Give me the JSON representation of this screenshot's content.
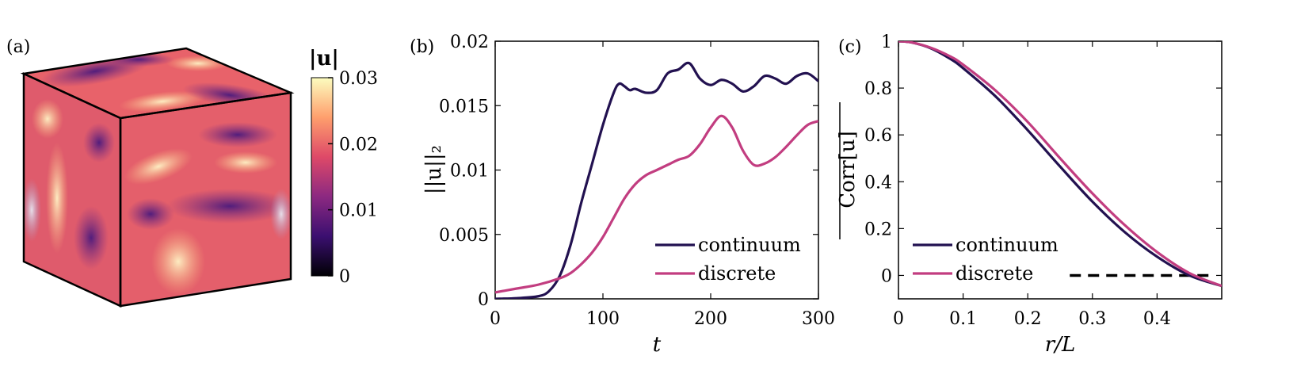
{
  "panels": {
    "a": "(a)",
    "b": "(b)",
    "c": "(c)"
  },
  "colors": {
    "continuum": "#221150",
    "discrete": "#c23d80"
  },
  "chart_data": [
    {
      "id": "a",
      "type": "heatmap",
      "colorbar": {
        "label": "|u|",
        "range": [
          0,
          0.03
        ],
        "ticks": [
          0,
          0.01,
          0.02,
          0.03
        ],
        "tick_labels": [
          "0",
          "0.01",
          "0.02",
          "0.03"
        ],
        "colormap": [
          "#000004",
          "#3b0f70",
          "#8c2981",
          "#de4968",
          "#fe9f6d",
          "#fcfdbf"
        ]
      }
    },
    {
      "id": "b",
      "type": "line",
      "xlabel": "t",
      "ylabel": "||u||₂",
      "xlim": [
        0,
        300
      ],
      "ylim": [
        0,
        0.02
      ],
      "xticks": [
        0,
        100,
        200,
        300
      ],
      "xtick_labels": [
        "0",
        "100",
        "200",
        "300"
      ],
      "yticks": [
        0,
        0.005,
        0.01,
        0.015,
        0.02
      ],
      "ytick_labels": [
        "0",
        "0.005",
        "0.01",
        "0.015",
        "0.02"
      ],
      "legend": [
        "continuum",
        "discrete"
      ],
      "legend_position": "bottom-right",
      "series": [
        {
          "name": "continuum",
          "x": [
            0,
            20,
            40,
            50,
            60,
            70,
            80,
            90,
            100,
            110,
            115,
            120,
            125,
            130,
            140,
            150,
            160,
            170,
            180,
            190,
            200,
            210,
            220,
            230,
            240,
            250,
            260,
            270,
            280,
            290,
            300
          ],
          "y": [
            0,
            5e-05,
            0.0002,
            0.0006,
            0.0018,
            0.0042,
            0.0075,
            0.0105,
            0.0135,
            0.016,
            0.0167,
            0.0165,
            0.0162,
            0.0163,
            0.016,
            0.0162,
            0.0175,
            0.0178,
            0.0183,
            0.0171,
            0.0166,
            0.017,
            0.0167,
            0.0161,
            0.0165,
            0.0173,
            0.0171,
            0.0167,
            0.0173,
            0.0175,
            0.0169
          ]
        },
        {
          "name": "discrete",
          "x": [
            0,
            20,
            40,
            60,
            70,
            80,
            90,
            100,
            110,
            120,
            130,
            140,
            150,
            160,
            170,
            180,
            190,
            200,
            210,
            220,
            230,
            240,
            250,
            260,
            270,
            280,
            290,
            300
          ],
          "y": [
            0.0005,
            0.0008,
            0.0011,
            0.0016,
            0.002,
            0.0027,
            0.0036,
            0.0048,
            0.0063,
            0.0078,
            0.0089,
            0.0096,
            0.01,
            0.0104,
            0.0108,
            0.0111,
            0.012,
            0.0133,
            0.0142,
            0.0133,
            0.0115,
            0.0104,
            0.0105,
            0.011,
            0.0118,
            0.0127,
            0.0135,
            0.0138
          ]
        }
      ]
    },
    {
      "id": "c",
      "type": "line",
      "xlabel": "r/L",
      "ylabel": "Corr[u]",
      "xlim": [
        0,
        0.5
      ],
      "ylim": [
        -0.1,
        1
      ],
      "xticks": [
        0,
        0.1,
        0.2,
        0.3,
        0.4
      ],
      "xtick_labels": [
        "0",
        "0.1",
        "0.2",
        "0.3",
        "0.4"
      ],
      "yticks": [
        0,
        0.2,
        0.4,
        0.6,
        0.8,
        1
      ],
      "ytick_labels": [
        "0",
        "0.2",
        "0.4",
        "0.6",
        "0.8",
        "1"
      ],
      "legend": [
        "continuum",
        "discrete"
      ],
      "legend_position": "bottom-left",
      "reference_line": {
        "y": 0,
        "x_range": [
          0.265,
          0.48
        ],
        "style": "dashed"
      },
      "series": [
        {
          "name": "continuum",
          "x": [
            0,
            0.02,
            0.05,
            0.08,
            0.1,
            0.15,
            0.2,
            0.25,
            0.3,
            0.35,
            0.4,
            0.45,
            0.5
          ],
          "y": [
            1,
            0.995,
            0.97,
            0.925,
            0.885,
            0.765,
            0.62,
            0.465,
            0.315,
            0.185,
            0.08,
            0,
            -0.045
          ]
        },
        {
          "name": "discrete",
          "x": [
            0,
            0.02,
            0.05,
            0.08,
            0.1,
            0.15,
            0.2,
            0.25,
            0.3,
            0.35,
            0.4,
            0.45,
            0.5
          ],
          "y": [
            1,
            0.995,
            0.972,
            0.935,
            0.9,
            0.79,
            0.655,
            0.5,
            0.35,
            0.215,
            0.1,
            0.01,
            -0.045
          ]
        }
      ]
    }
  ]
}
